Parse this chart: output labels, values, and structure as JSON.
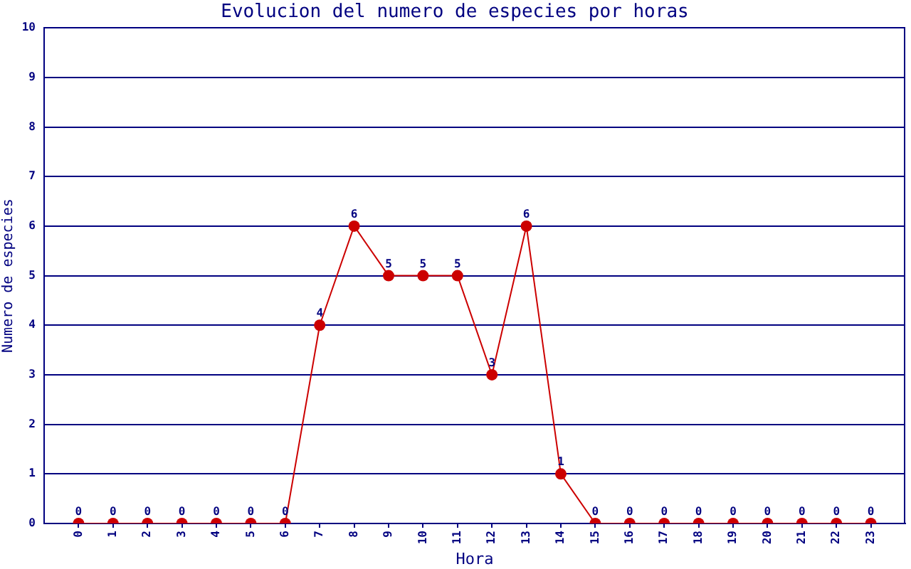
{
  "chart_data": {
    "type": "line",
    "title": "Evolucion del numero de especies por horas",
    "xlabel": "Hora",
    "ylabel": "Numero de especies",
    "categories": [
      "0",
      "1",
      "2",
      "3",
      "4",
      "5",
      "6",
      "7",
      "8",
      "9",
      "10",
      "11",
      "12",
      "13",
      "14",
      "15",
      "16",
      "17",
      "18",
      "19",
      "20",
      "21",
      "22",
      "23"
    ],
    "series": [
      {
        "color": "#cc0000",
        "values": [
          0,
          0,
          0,
          0,
          0,
          0,
          0,
          4,
          6,
          5,
          5,
          5,
          3,
          6,
          1,
          0,
          0,
          0,
          0,
          0,
          0,
          0,
          0,
          0
        ]
      }
    ],
    "ylim": [
      0,
      10
    ],
    "yticks": [
      0,
      1,
      2,
      3,
      4,
      5,
      6,
      7,
      8,
      9,
      10
    ],
    "grid": "y",
    "legend": false,
    "marker": "circle",
    "line_style": "solid",
    "data_labels": true
  }
}
